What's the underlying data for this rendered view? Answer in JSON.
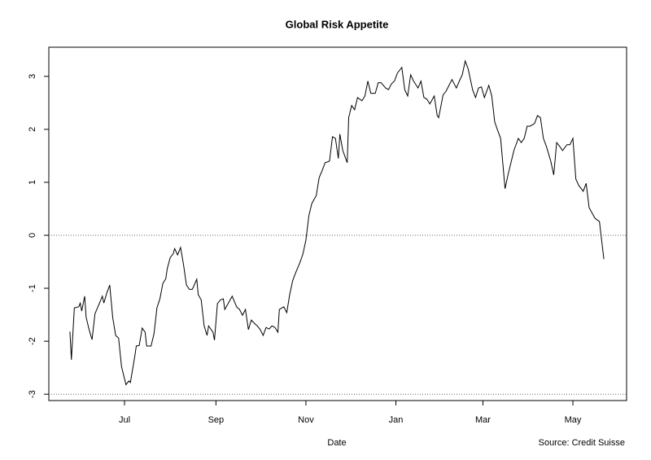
{
  "chart_data": {
    "type": "line",
    "title": "Global Risk Appetite",
    "x_label": "Date",
    "source": "Source: Credit Suisse",
    "xlim": [
      -51.3,
      340.4
    ],
    "xticks": [
      {
        "value": 0,
        "label": "Jul"
      },
      {
        "value": 62,
        "label": "Sep"
      },
      {
        "value": 123,
        "label": "Nov"
      },
      {
        "value": 184,
        "label": "Jan"
      },
      {
        "value": 243,
        "label": "Mar"
      },
      {
        "value": 304,
        "label": "May"
      }
    ],
    "ylim": [
      -3.12,
      3.55
    ],
    "yticks": [
      -3,
      -2,
      -1,
      0,
      1,
      2,
      3
    ],
    "hlines": [
      0,
      -3
    ],
    "color": "#000000",
    "x": [
      -37,
      -36,
      -34,
      -31,
      -30,
      -29,
      -27,
      -26,
      -24,
      -22,
      -20,
      -18,
      -15,
      -14,
      -12,
      -10,
      -8,
      -6,
      -4,
      -2,
      1,
      3,
      4,
      7,
      8,
      10,
      12,
      14,
      15,
      18,
      20,
      22,
      24,
      26,
      28,
      29,
      31,
      33,
      34,
      36,
      38,
      40,
      42,
      44,
      46,
      49,
      50,
      52,
      54,
      56,
      57,
      60,
      61,
      63,
      65,
      67,
      68,
      71,
      73,
      76,
      78,
      80,
      82,
      84,
      86,
      88,
      90,
      92,
      94,
      96,
      98,
      100,
      102,
      104,
      105,
      108,
      110,
      112,
      114,
      116,
      119,
      121,
      123,
      125,
      127,
      130,
      132,
      134,
      136,
      139,
      141,
      143,
      145,
      146,
      148,
      151,
      152,
      154,
      156,
      158,
      161,
      163,
      165,
      167,
      170,
      172,
      174,
      177,
      179,
      181,
      183,
      185,
      188,
      190,
      192,
      194,
      196,
      199,
      201,
      203,
      205,
      207,
      210,
      212,
      213,
      216,
      218,
      220,
      222,
      225,
      227,
      229,
      231,
      233,
      236,
      238,
      240,
      242,
      244,
      247,
      249,
      251,
      253,
      255,
      258,
      260,
      262,
      264,
      267,
      269,
      271,
      273,
      275,
      278,
      280,
      282,
      284,
      286,
      289,
      291,
      293,
      295,
      297,
      300,
      302,
      304,
      306,
      308,
      311,
      313,
      315,
      317,
      319,
      322,
      323,
      325
    ],
    "values": [
      -1.82,
      -2.35,
      -1.37,
      -1.35,
      -1.28,
      -1.43,
      -1.15,
      -1.55,
      -1.78,
      -1.97,
      -1.48,
      -1.35,
      -1.15,
      -1.28,
      -1.09,
      -0.94,
      -1.55,
      -1.89,
      -1.94,
      -2.48,
      -2.82,
      -2.75,
      -2.78,
      -2.28,
      -2.09,
      -2.08,
      -1.75,
      -1.83,
      -2.09,
      -2.09,
      -1.86,
      -1.37,
      -1.2,
      -0.91,
      -0.82,
      -0.63,
      -0.42,
      -0.35,
      -0.25,
      -0.37,
      -0.23,
      -0.55,
      -0.94,
      -1.02,
      -1.02,
      -0.83,
      -1.12,
      -1.22,
      -1.71,
      -1.89,
      -1.71,
      -1.83,
      -1.98,
      -1.29,
      -1.22,
      -1.2,
      -1.4,
      -1.25,
      -1.15,
      -1.35,
      -1.4,
      -1.51,
      -1.4,
      -1.78,
      -1.6,
      -1.66,
      -1.71,
      -1.78,
      -1.89,
      -1.74,
      -1.77,
      -1.71,
      -1.74,
      -1.83,
      -1.4,
      -1.35,
      -1.46,
      -1.12,
      -0.86,
      -0.71,
      -0.51,
      -0.35,
      -0.09,
      0.37,
      0.6,
      0.75,
      1.09,
      1.22,
      1.37,
      1.4,
      1.86,
      1.83,
      1.45,
      1.91,
      1.6,
      1.37,
      2.22,
      2.45,
      2.37,
      2.6,
      2.54,
      2.63,
      2.91,
      2.68,
      2.68,
      2.88,
      2.88,
      2.78,
      2.75,
      2.86,
      2.91,
      3.06,
      3.17,
      2.75,
      2.63,
      3.03,
      2.91,
      2.78,
      2.91,
      2.6,
      2.57,
      2.48,
      2.63,
      2.26,
      2.22,
      2.65,
      2.72,
      2.83,
      2.94,
      2.78,
      2.91,
      3.03,
      3.29,
      3.14,
      2.75,
      2.6,
      2.78,
      2.8,
      2.6,
      2.83,
      2.63,
      2.14,
      1.98,
      1.83,
      0.88,
      1.14,
      1.37,
      1.6,
      1.83,
      1.75,
      1.83,
      2.06,
      2.06,
      2.11,
      2.26,
      2.22,
      1.83,
      1.68,
      1.4,
      1.14,
      1.75,
      1.68,
      1.6,
      1.71,
      1.71,
      1.83,
      1.06,
      0.94,
      0.83,
      0.98,
      0.52,
      0.42,
      0.32,
      0.26,
      0.02,
      -0.45
    ]
  }
}
